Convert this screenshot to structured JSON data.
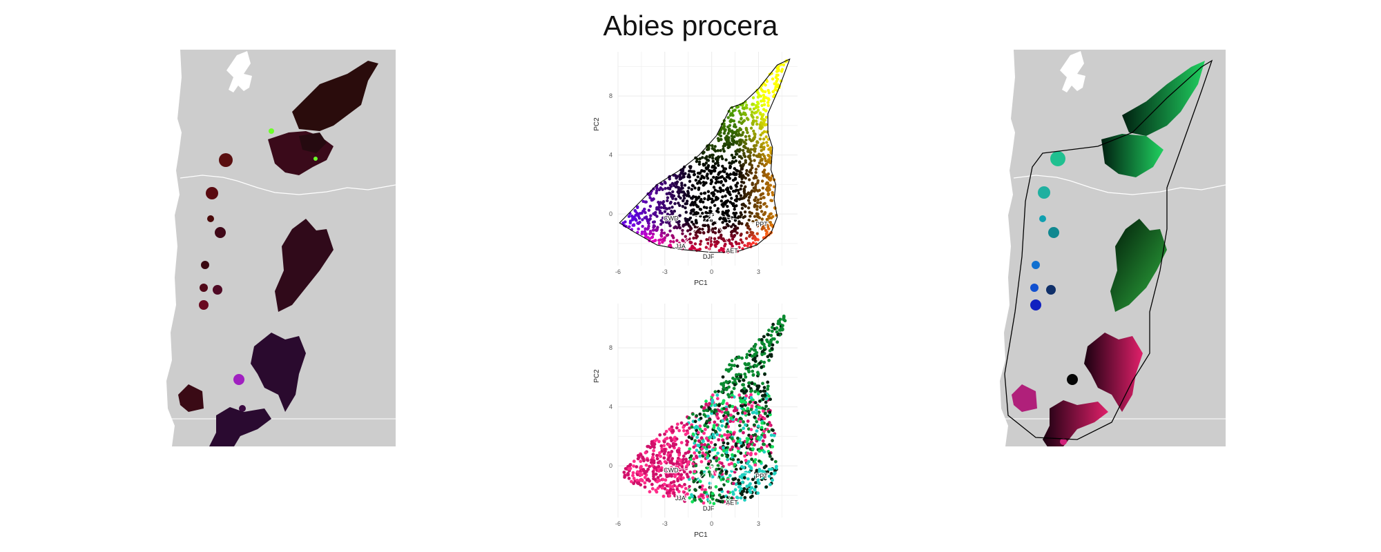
{
  "title": "Abies procera",
  "colors": {
    "map_land": "#cdcdcd",
    "map_water": "#ffffff",
    "plot_grid": "#ececec",
    "hull_line": "#000000",
    "border_line": "#ffffff"
  },
  "left_map": {
    "description_icons": [
      "map-panel",
      "range-patches"
    ]
  },
  "right_map": {
    "description_icons": [
      "map-panel",
      "range-patches",
      "outline-polygon"
    ]
  },
  "chart_data": [
    {
      "type": "scatter",
      "panel": "top",
      "xlabel": "PC1",
      "ylabel": "PC2",
      "xlim": [
        -6,
        5.5
      ],
      "ylim": [
        -3.5,
        11
      ],
      "xticks": [
        -6,
        -3,
        0,
        3
      ],
      "yticks": [
        0,
        4,
        8
      ],
      "grid": true,
      "loadings": [
        {
          "label": "CWD",
          "x": -2.6,
          "y": -0.3
        },
        {
          "label": "JJA",
          "x": -2.0,
          "y": -2.2
        },
        {
          "label": "DJF",
          "x": -0.2,
          "y": -2.9
        },
        {
          "label": "AET",
          "x": 1.3,
          "y": -2.5
        },
        {
          "label": "PPT",
          "x": 3.2,
          "y": -0.7
        }
      ],
      "hull": [
        [
          -5.9,
          -0.6
        ],
        [
          -5.0,
          -1.2
        ],
        [
          -3.5,
          -2.1
        ],
        [
          -2.0,
          -2.4
        ],
        [
          0,
          -2.6
        ],
        [
          1.5,
          -2.6
        ],
        [
          2.9,
          -2.1
        ],
        [
          3.8,
          -1.3
        ],
        [
          4.2,
          -0.2
        ],
        [
          4.0,
          1.0
        ],
        [
          4.1,
          2.0
        ],
        [
          3.8,
          3.0
        ],
        [
          3.9,
          4.5
        ],
        [
          3.6,
          5.5
        ],
        [
          3.6,
          6.8
        ],
        [
          4.3,
          8.5
        ],
        [
          5.0,
          10.5
        ],
        [
          4.2,
          10.1
        ],
        [
          3.0,
          8.5
        ],
        [
          2.0,
          7.5
        ],
        [
          1.2,
          7.2
        ],
        [
          0.3,
          5.3
        ],
        [
          -0.8,
          4.0
        ],
        [
          -2.0,
          3.0
        ],
        [
          -3.5,
          2.0
        ],
        [
          -5.9,
          -0.6
        ]
      ],
      "density_note": "colored by position in PC space"
    },
    {
      "type": "scatter",
      "panel": "bottom",
      "xlabel": "PC1",
      "ylabel": "PC2",
      "xlim": [
        -6,
        5.5
      ],
      "ylim": [
        -3.5,
        11
      ],
      "xticks": [
        -6,
        -3,
        0,
        3
      ],
      "yticks": [
        0,
        4,
        8
      ],
      "grid": true,
      "loadings": [
        {
          "label": "CWD",
          "x": -2.6,
          "y": -0.3
        },
        {
          "label": "JJA",
          "x": -2.0,
          "y": -2.2
        },
        {
          "label": "DJF",
          "x": -0.2,
          "y": -2.9
        },
        {
          "label": "AET",
          "x": 1.3,
          "y": -2.5
        },
        {
          "label": "PPT",
          "x": 3.2,
          "y": -0.7
        }
      ],
      "density_note": "colored by geographic position"
    }
  ]
}
